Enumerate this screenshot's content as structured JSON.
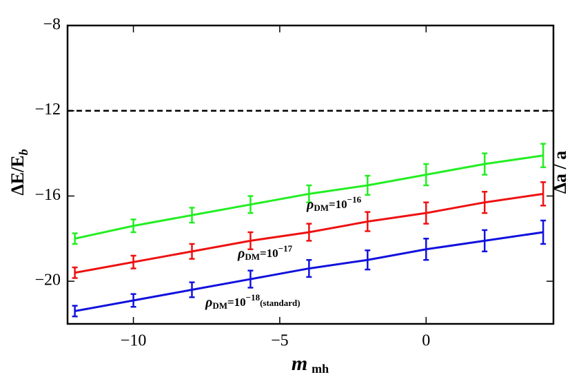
{
  "chart_data": {
    "type": "errorbar-line",
    "x_label": {
      "main": "m",
      "sub": "mh"
    },
    "y_label": {
      "main": "ΔE/E",
      "sub": "b"
    },
    "y2_label": "Δa / a",
    "x": [
      -12,
      -10,
      -8,
      -6,
      -4,
      -2,
      0,
      2,
      4
    ],
    "series": [
      {
        "name": {
          "sym": "ρ",
          "sub": "DM",
          "mid": "=10",
          "sup": "−16"
        },
        "color": "#22ee22",
        "values": [
          -18.0,
          -17.4,
          -16.9,
          -16.4,
          -15.9,
          -15.5,
          -15.0,
          -14.5,
          -14.1
        ],
        "errors": [
          0.25,
          0.3,
          0.35,
          0.4,
          0.4,
          0.45,
          0.5,
          0.5,
          0.55
        ]
      },
      {
        "name": {
          "sym": "ρ",
          "sub": "DM",
          "mid": "=10",
          "sup": "−17"
        },
        "color": "#ee1111",
        "values": [
          -19.6,
          -19.1,
          -18.6,
          -18.1,
          -17.7,
          -17.2,
          -16.8,
          -16.3,
          -15.9
        ],
        "errors": [
          0.25,
          0.3,
          0.35,
          0.4,
          0.4,
          0.45,
          0.5,
          0.5,
          0.55
        ]
      },
      {
        "name": {
          "sym": "ρ",
          "sub": "DM",
          "mid": "=10",
          "sup": "−18",
          "tail": "(standard)"
        },
        "color": "#1111dd",
        "values": [
          -21.4,
          -20.9,
          -20.4,
          -19.9,
          -19.4,
          -19.0,
          -18.5,
          -18.1,
          -17.7
        ],
        "errors": [
          0.25,
          0.3,
          0.35,
          0.4,
          0.4,
          0.45,
          0.5,
          0.5,
          0.55
        ]
      }
    ],
    "hline": {
      "value": -12,
      "style": "dashed",
      "color": "#000000"
    },
    "xlim": [
      -12.25,
      4.35
    ],
    "ylim": [
      -22,
      -8
    ],
    "xticks": [
      {
        "value": -10,
        "label": "−10"
      },
      {
        "value": -5,
        "label": "−5"
      },
      0
    ],
    "yticks": [
      {
        "value": -8,
        "label": "−8"
      },
      {
        "value": -12,
        "label": "−12"
      },
      {
        "value": -16,
        "label": "−16"
      },
      {
        "value": -20,
        "label": "−20"
      }
    ],
    "grid": false
  }
}
